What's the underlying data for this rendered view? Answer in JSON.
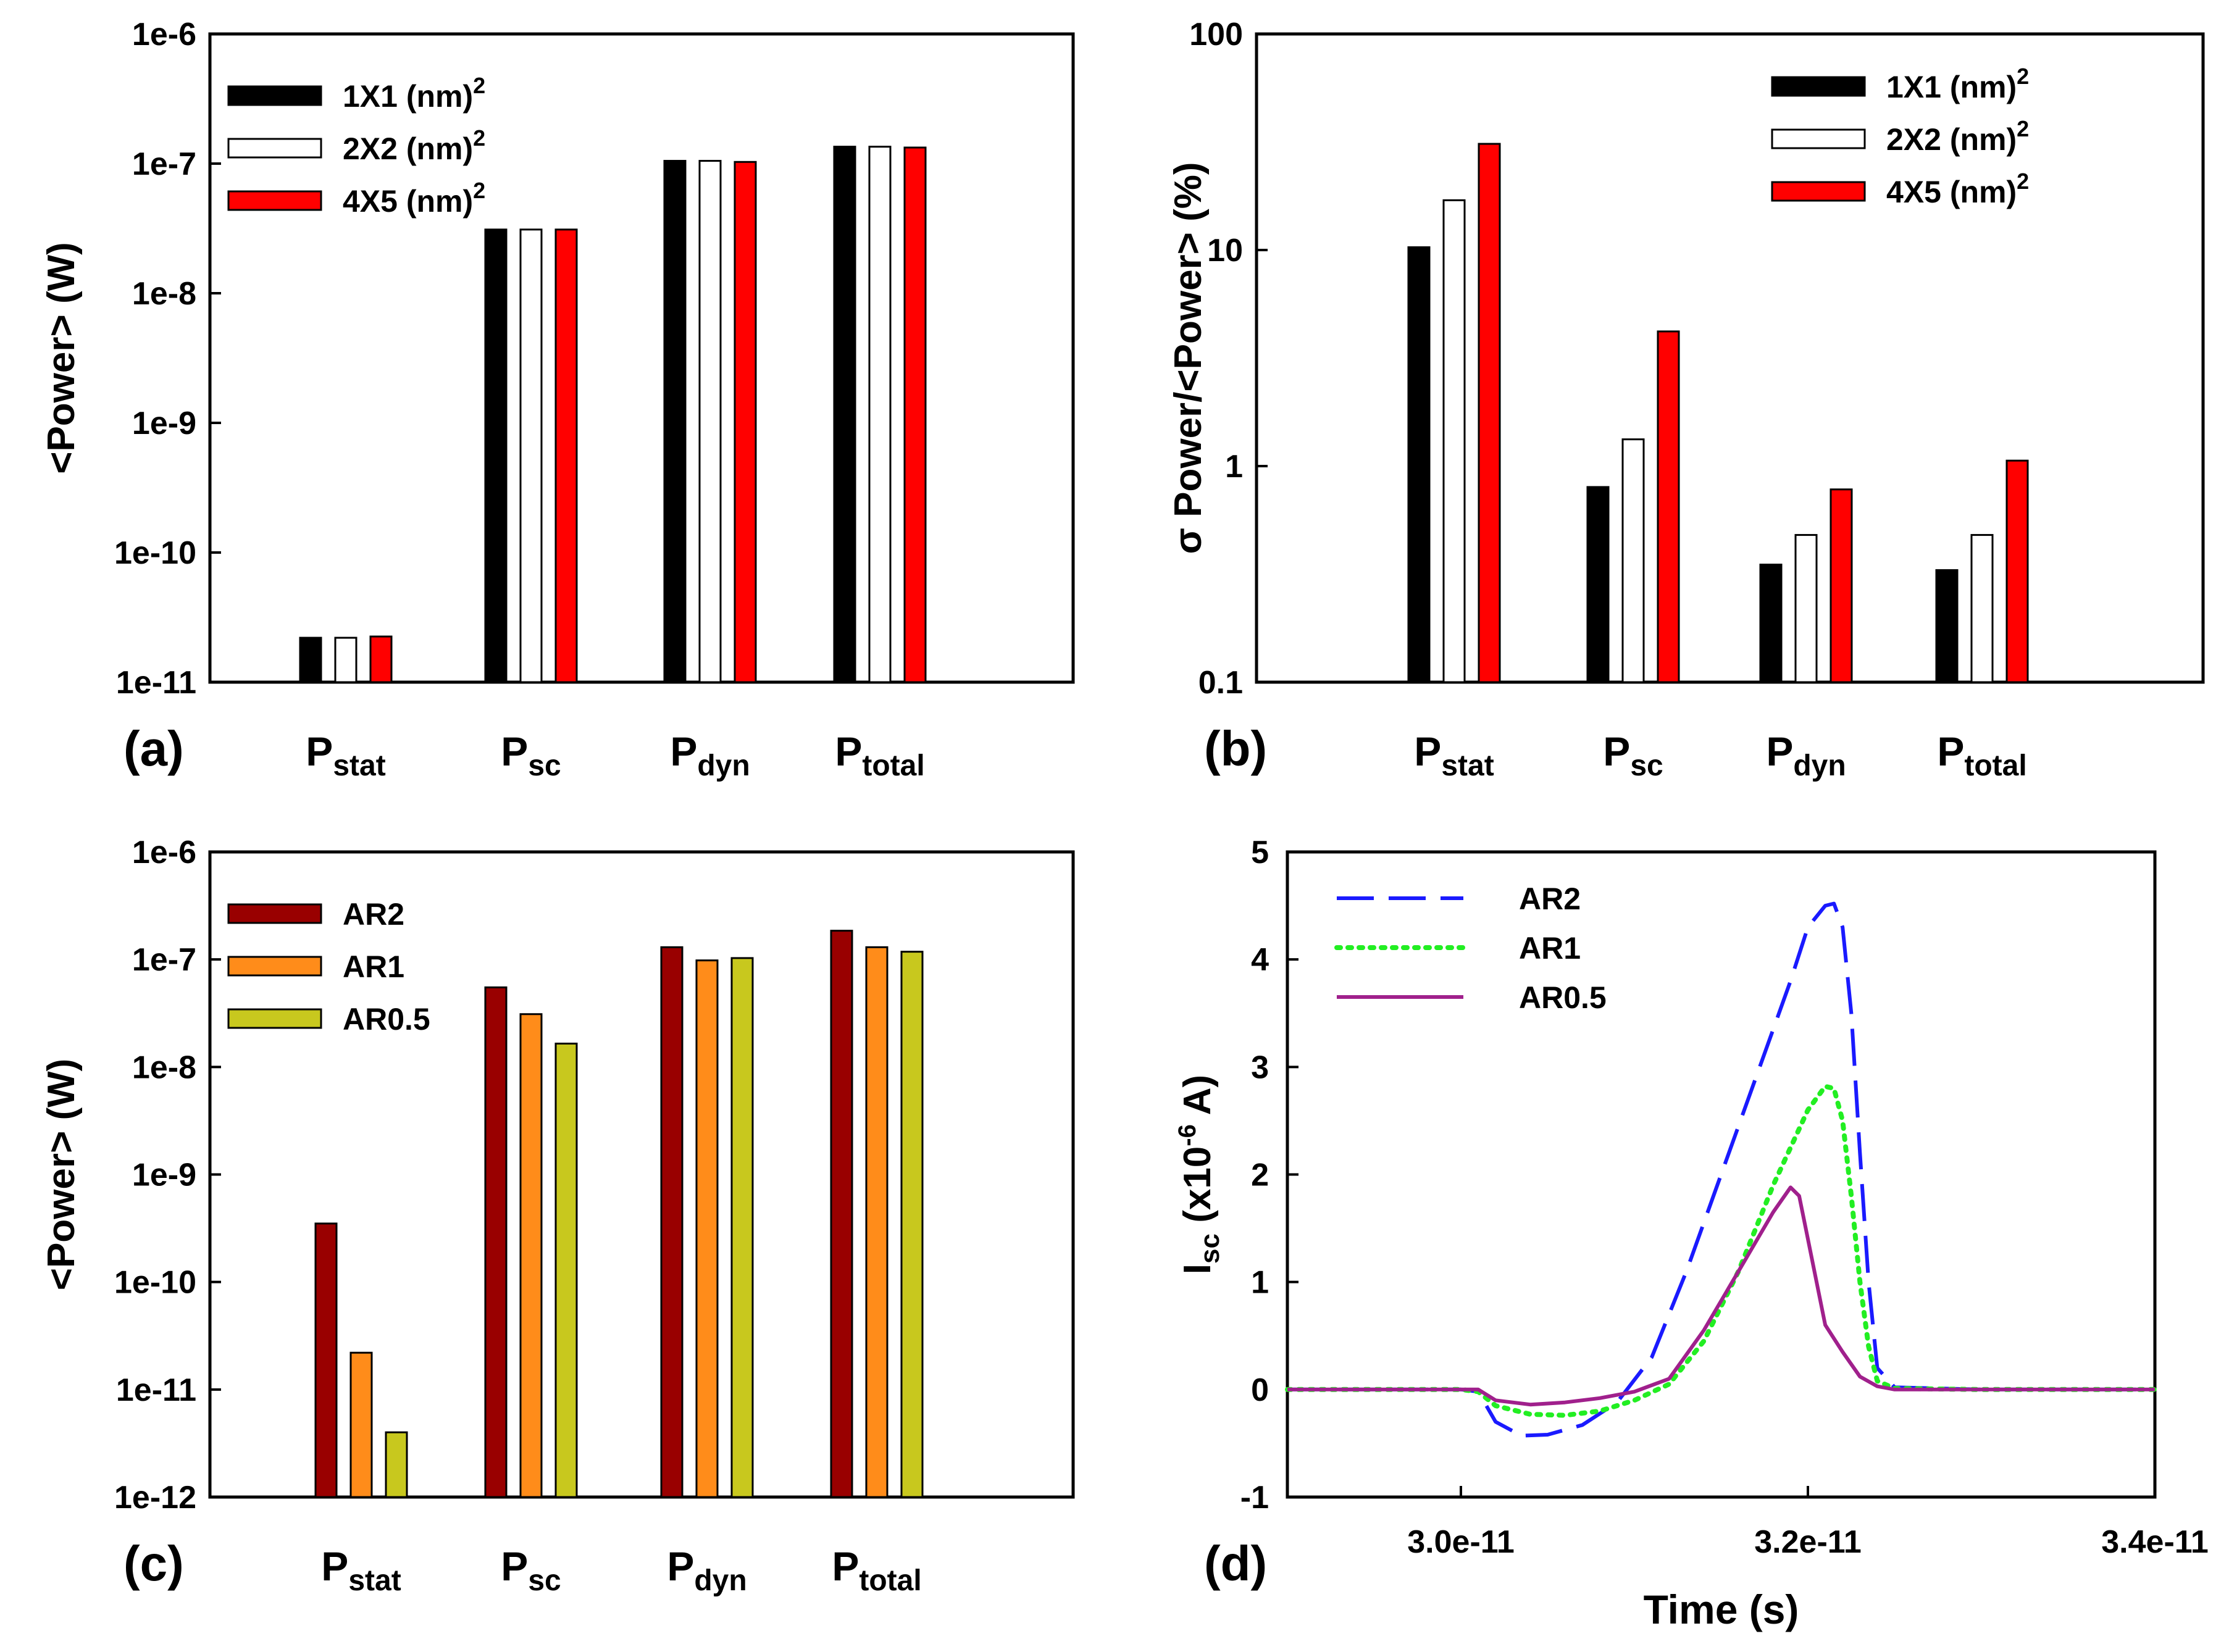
{
  "chart_data": [
    {
      "panel": "(a)",
      "type": "bar",
      "scale": "log",
      "ylabel": "<Power> (W)",
      "ylim": [
        1e-11,
        1e-06
      ],
      "yticks": [
        "1e-11",
        "1e-10",
        "1e-9",
        "1e-8",
        "1e-7",
        "1e-6"
      ],
      "categories": [
        {
          "main": "P",
          "sub": "stat"
        },
        {
          "main": "P",
          "sub": "sc"
        },
        {
          "main": "P",
          "sub": "dyn"
        },
        {
          "main": "P",
          "sub": "total"
        }
      ],
      "series": [
        {
          "name": "1X1 (nm)",
          "sup": "2",
          "color": "#000000",
          "values": [
            2.2e-11,
            3.1e-08,
            1.05e-07,
            1.35e-07
          ]
        },
        {
          "name": "2X2 (nm)",
          "sup": "2",
          "color": "#ffffff",
          "values": [
            2.2e-11,
            3.1e-08,
            1.05e-07,
            1.35e-07
          ]
        },
        {
          "name": "4X5 (nm)",
          "sup": "2",
          "color": "#ff0000",
          "values": [
            2.25e-11,
            3.1e-08,
            1.03e-07,
            1.33e-07
          ]
        }
      ],
      "legend": "top-left"
    },
    {
      "panel": "(b)",
      "type": "bar",
      "scale": "log",
      "ylabel": "σ Power/<Power> (%)",
      "ylim": [
        0.1,
        100
      ],
      "yticks": [
        "0.1",
        "1",
        "10",
        "100"
      ],
      "categories": [
        {
          "main": "P",
          "sub": "stat"
        },
        {
          "main": "P",
          "sub": "sc"
        },
        {
          "main": "P",
          "sub": "dyn"
        },
        {
          "main": "P",
          "sub": "total"
        }
      ],
      "series": [
        {
          "name": "1X1 (nm)",
          "sup": "2",
          "color": "#000000",
          "values": [
            10.3,
            0.8,
            0.35,
            0.33
          ]
        },
        {
          "name": "2X2 (nm)",
          "sup": "2",
          "color": "#ffffff",
          "values": [
            17.0,
            1.33,
            0.48,
            0.48
          ]
        },
        {
          "name": "4X5 (nm)",
          "sup": "2",
          "color": "#ff0000",
          "values": [
            31.0,
            4.2,
            0.78,
            1.06
          ]
        }
      ],
      "legend": "top-right"
    },
    {
      "panel": "(c)",
      "type": "bar",
      "scale": "log",
      "ylabel": "<Power> (W)",
      "ylim": [
        1e-12,
        1e-06
      ],
      "yticks": [
        "1e-12",
        "1e-11",
        "1e-10",
        "1e-9",
        "1e-8",
        "1e-7",
        "1e-6"
      ],
      "categories": [
        {
          "main": "P",
          "sub": "stat"
        },
        {
          "main": "P",
          "sub": "sc"
        },
        {
          "main": "P",
          "sub": "dyn"
        },
        {
          "main": "P",
          "sub": "total"
        }
      ],
      "series": [
        {
          "name": "AR2",
          "color": "#990000",
          "values": [
            3.5e-10,
            5.5e-08,
            1.3e-07,
            1.85e-07
          ]
        },
        {
          "name": "AR1",
          "color": "#ff8c1a",
          "values": [
            2.2e-11,
            3.1e-08,
            9.8e-08,
            1.3e-07
          ]
        },
        {
          "name": "AR0.5",
          "color": "#c8c81e",
          "values": [
            4e-12,
            1.65e-08,
            1.03e-07,
            1.18e-07
          ]
        }
      ],
      "legend": "top-left"
    },
    {
      "panel": "(d)",
      "type": "line",
      "ylabel": {
        "main": "I",
        "sub": "sc",
        "rest1": " (x10",
        "sup": "-6",
        "rest2": " A)"
      },
      "xlabel": "Time (s)",
      "xlim": [
        2.9e-11,
        3.4e-11
      ],
      "ylim": [
        -1,
        5
      ],
      "xticks": [
        {
          "v": 3e-11,
          "label": "3.0e-11"
        },
        {
          "v": 3.2e-11,
          "label": "3.2e-11"
        },
        {
          "v": 3.4e-11,
          "label": "3.4e-11"
        }
      ],
      "yticks": [
        "-1",
        "0",
        "1",
        "2",
        "3",
        "4",
        "5"
      ],
      "series": [
        {
          "name": "AR2",
          "color": "#1a1aff",
          "style": "dashed",
          "x": [
            2.9e-11,
            3e-11,
            3.01e-11,
            3.02e-11,
            3.035e-11,
            3.05e-11,
            3.07e-11,
            3.09e-11,
            3.11e-11,
            3.13e-11,
            3.15e-11,
            3.17e-11,
            3.19e-11,
            3.2e-11,
            3.21e-11,
            3.215e-11,
            3.22e-11,
            3.225e-11,
            3.23e-11,
            3.235e-11,
            3.24e-11,
            3.25e-11,
            3.3e-11,
            3.4e-11
          ],
          "y": [
            0,
            0,
            -0.02,
            -0.3,
            -0.43,
            -0.42,
            -0.33,
            -0.12,
            0.3,
            1.1,
            2.0,
            2.9,
            3.8,
            4.3,
            4.5,
            4.52,
            4.3,
            3.5,
            2.2,
            1.0,
            0.2,
            0.02,
            0,
            0
          ]
        },
        {
          "name": "AR1",
          "color": "#22ee22",
          "style": "dotted",
          "x": [
            2.9e-11,
            3e-11,
            3.01e-11,
            3.02e-11,
            3.04e-11,
            3.06e-11,
            3.08e-11,
            3.1e-11,
            3.12e-11,
            3.14e-11,
            3.16e-11,
            3.18e-11,
            3.2e-11,
            3.21e-11,
            3.215e-11,
            3.22e-11,
            3.225e-11,
            3.23e-11,
            3.235e-11,
            3.24e-11,
            3.25e-11,
            3.3e-11,
            3.4e-11
          ],
          "y": [
            0,
            0,
            -0.02,
            -0.15,
            -0.23,
            -0.24,
            -0.2,
            -0.1,
            0.05,
            0.45,
            1.1,
            1.9,
            2.6,
            2.82,
            2.8,
            2.5,
            1.8,
            1.0,
            0.4,
            0.08,
            0.01,
            0,
            0
          ]
        },
        {
          "name": "AR0.5",
          "color": "#a0208c",
          "style": "solid",
          "x": [
            2.9e-11,
            3e-11,
            3.01e-11,
            3.02e-11,
            3.04e-11,
            3.06e-11,
            3.08e-11,
            3.1e-11,
            3.12e-11,
            3.14e-11,
            3.16e-11,
            3.18e-11,
            3.19e-11,
            3.195e-11,
            3.2e-11,
            3.21e-11,
            3.22e-11,
            3.23e-11,
            3.24e-11,
            3.25e-11,
            3.3e-11,
            3.4e-11
          ],
          "y": [
            0,
            0,
            0,
            -0.1,
            -0.14,
            -0.12,
            -0.08,
            -0.02,
            0.1,
            0.55,
            1.1,
            1.65,
            1.88,
            1.8,
            1.4,
            0.6,
            0.35,
            0.12,
            0.03,
            0.0,
            0,
            0
          ]
        }
      ],
      "legend": "top-left"
    }
  ]
}
